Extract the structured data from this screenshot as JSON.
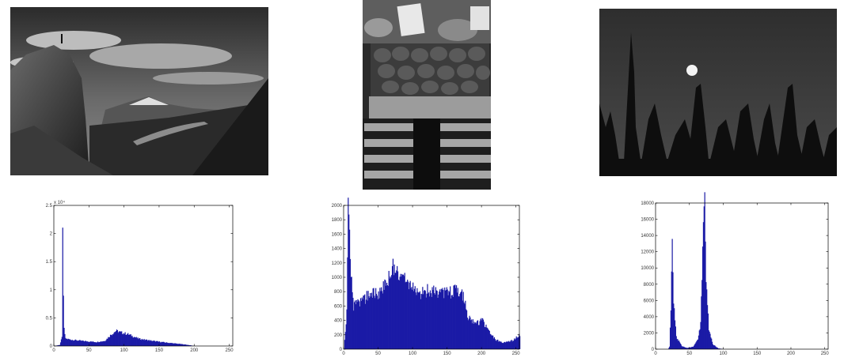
{
  "colors": {
    "bar": "#1a1aa6",
    "axis": "#000000",
    "background": "#ffffff"
  },
  "panels": [
    {
      "photo": "mountain-landscape",
      "chart_data": {
        "type": "bar",
        "xlim": [
          0,
          255
        ],
        "ylim": [
          0,
          25000
        ],
        "xticks": [
          "0",
          "50",
          "100",
          "150",
          "200",
          "250"
        ],
        "yticks": [
          "0",
          "0.5",
          "1",
          "1.5",
          "2",
          "2.5"
        ],
        "y_exponent": "x 10⁴",
        "profile": [
          [
            0,
            0
          ],
          [
            8,
            200
          ],
          [
            11,
            1500
          ],
          [
            12,
            22800
          ],
          [
            13,
            8000
          ],
          [
            14,
            3000
          ],
          [
            16,
            1300
          ],
          [
            25,
            1100
          ],
          [
            40,
            900
          ],
          [
            60,
            700
          ],
          [
            72,
            900
          ],
          [
            80,
            1900
          ],
          [
            88,
            2700
          ],
          [
            95,
            2400
          ],
          [
            105,
            2100
          ],
          [
            120,
            1300
          ],
          [
            140,
            900
          ],
          [
            160,
            600
          ],
          [
            180,
            350
          ],
          [
            190,
            200
          ],
          [
            200,
            0
          ],
          [
            255,
            0
          ]
        ]
      }
    },
    {
      "photo": "market-peppers",
      "chart_data": {
        "type": "bar",
        "xlim": [
          0,
          255
        ],
        "ylim": [
          0,
          2000
        ],
        "xticks": [
          "0",
          "50",
          "100",
          "150",
          "200",
          "250"
        ],
        "yticks": [
          "0",
          "200",
          "400",
          "600",
          "800",
          "1000",
          "1200",
          "1400",
          "1600",
          "1800",
          "2000"
        ],
        "profile": [
          [
            0,
            0
          ],
          [
            4,
            500
          ],
          [
            6,
            1950
          ],
          [
            8,
            1500
          ],
          [
            10,
            1000
          ],
          [
            14,
            600
          ],
          [
            20,
            620
          ],
          [
            30,
            700
          ],
          [
            40,
            780
          ],
          [
            50,
            780
          ],
          [
            60,
            880
          ],
          [
            68,
            1050
          ],
          [
            72,
            1150
          ],
          [
            78,
            1100
          ],
          [
            85,
            1000
          ],
          [
            95,
            900
          ],
          [
            105,
            760
          ],
          [
            115,
            800
          ],
          [
            125,
            830
          ],
          [
            135,
            760
          ],
          [
            145,
            780
          ],
          [
            155,
            800
          ],
          [
            165,
            820
          ],
          [
            172,
            760
          ],
          [
            180,
            450
          ],
          [
            190,
            340
          ],
          [
            200,
            400
          ],
          [
            210,
            250
          ],
          [
            220,
            130
          ],
          [
            230,
            90
          ],
          [
            245,
            120
          ],
          [
            255,
            200
          ]
        ]
      }
    },
    {
      "photo": "night-moon-forest",
      "chart_data": {
        "type": "bar",
        "xlim": [
          0,
          255
        ],
        "ylim": [
          0,
          18000
        ],
        "xticks": [
          "0",
          "50",
          "100",
          "150",
          "200",
          "250"
        ],
        "yticks": [
          "0",
          "2000",
          "4000",
          "6000",
          "8000",
          "10000",
          "12000",
          "14000",
          "16000",
          "18000"
        ],
        "profile": [
          [
            0,
            0
          ],
          [
            18,
            0
          ],
          [
            20,
            300
          ],
          [
            22,
            5200
          ],
          [
            24,
            14200
          ],
          [
            26,
            6000
          ],
          [
            30,
            1500
          ],
          [
            38,
            400
          ],
          [
            45,
            150
          ],
          [
            55,
            300
          ],
          [
            62,
            1200
          ],
          [
            66,
            3200
          ],
          [
            70,
            14000
          ],
          [
            72,
            17500
          ],
          [
            74,
            9000
          ],
          [
            78,
            2500
          ],
          [
            84,
            600
          ],
          [
            92,
            100
          ],
          [
            100,
            0
          ],
          [
            255,
            0
          ]
        ]
      }
    }
  ]
}
